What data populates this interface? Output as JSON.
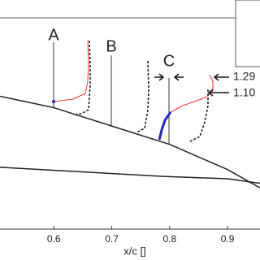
{
  "chart_data": {
    "type": "line",
    "xlabel": "x/c []",
    "xlim": [
      0.507,
      0.956
    ],
    "ylim": [
      0,
      1
    ],
    "xticks": [
      0.6,
      0.7,
      0.8,
      0.9
    ],
    "annotations": [
      "A",
      "B",
      "C",
      "1.29",
      "1.10"
    ],
    "series": [
      {
        "color": "#222222",
        "x": [
          0.507,
          0.6,
          0.7,
          0.8,
          0.9,
          0.956
        ],
        "values": [
          0.58,
          0.53,
          0.45,
          0.37,
          0.26,
          0.18
        ]
      },
      {
        "color": "#222222",
        "x": [
          0.507,
          0.648,
          0.789,
          0.9,
          0.956
        ],
        "values": [
          0.27,
          0.25,
          0.23,
          0.22,
          0.2
        ]
      }
    ]
  }
}
